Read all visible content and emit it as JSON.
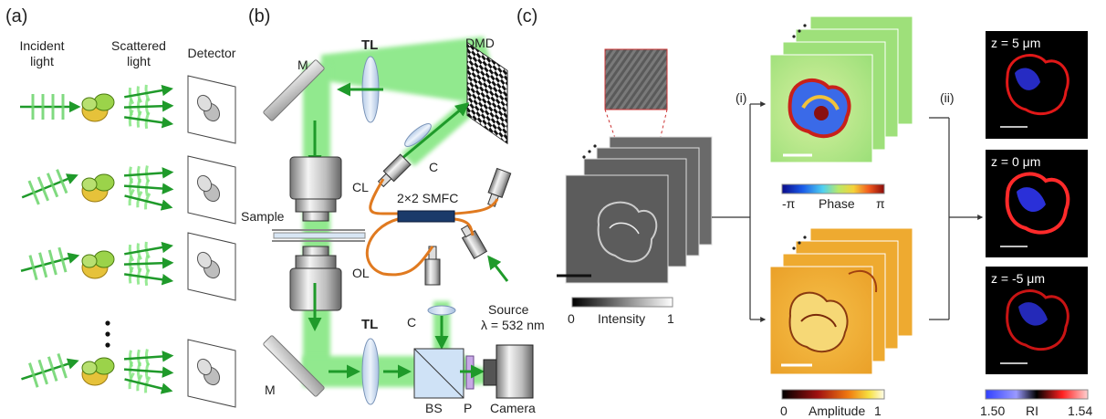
{
  "panels": {
    "a": {
      "letter": "(a)",
      "incident_label": [
        "Incident",
        "light"
      ],
      "scattered_label": [
        "Scattered",
        "light"
      ],
      "detector_label": "Detector",
      "ellipsis": "•\n•\n•"
    },
    "b": {
      "letter": "(b)",
      "tl_top": "TL",
      "dmd": "DMD",
      "m_top": "M",
      "c_top": "C",
      "cl": "CL",
      "sample": "Sample",
      "smfc": "2×2 SMFC",
      "ol": "OL",
      "source": "Source",
      "lambda": "λ  = 532 nm",
      "c_bottom": "C",
      "tl_bottom": "TL",
      "m_bottom": "M",
      "bs": "BS",
      "p": "P",
      "camera": "Camera"
    },
    "c": {
      "letter": "(c)",
      "step_i": "(i)",
      "step_ii": "(ii)",
      "intensity_bar": {
        "min": "0",
        "label": "Intensity",
        "max": "1"
      },
      "phase_bar": {
        "min": "-π",
        "label": "Phase",
        "max": "π"
      },
      "amplitude_bar": {
        "min": "0",
        "label": "Amplitude",
        "max": "1"
      },
      "ri_bar": {
        "min": "1.50",
        "label": "RI",
        "max": "1.54"
      },
      "z_top": "z = 5 μm",
      "z_mid": "z = 0 μm",
      "z_bot": "z = -5 μm"
    }
  },
  "colors": {
    "green": "#1f9a2a",
    "beam": "#7ee57a",
    "cell_green": "#9bd34a",
    "cell_yellow": "#e6c23a",
    "fiber": "#e07a20"
  }
}
